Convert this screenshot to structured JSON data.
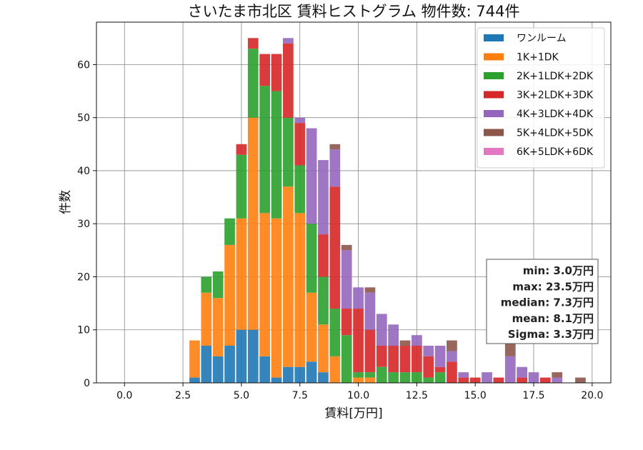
{
  "chart_data": {
    "type": "bar",
    "stacked": true,
    "title": "さいたま市北区 賃料ヒストグラム 物件数: 744件",
    "xlabel": "賃料[万円]",
    "ylabel": "件数",
    "xlim": [
      -1.2,
      20.8
    ],
    "ylim": [
      0,
      68
    ],
    "xticks": [
      "0.0",
      "2.5",
      "5.0",
      "7.5",
      "10.0",
      "12.5",
      "15.0",
      "17.5",
      "20.0"
    ],
    "yticks": [
      "0",
      "10",
      "20",
      "30",
      "40",
      "50",
      "60"
    ],
    "grid": true,
    "legend_position": "top-right",
    "bin_width": 0.5,
    "x": [
      3.0,
      3.5,
      4.0,
      4.5,
      5.0,
      5.5,
      6.0,
      6.5,
      7.0,
      7.5,
      8.0,
      8.5,
      9.0,
      9.5,
      10.0,
      10.5,
      11.0,
      11.5,
      12.0,
      12.5,
      13.0,
      13.5,
      14.0,
      14.5,
      15.0,
      15.5,
      16.0,
      16.5,
      17.0,
      17.5,
      18.0,
      18.5,
      19.0,
      19.5
    ],
    "series": [
      {
        "name": "ワンルーム",
        "color": "#1f77b4",
        "values": [
          1,
          7,
          5,
          7,
          10,
          10,
          5,
          1,
          3,
          3,
          4,
          2,
          0,
          0,
          0,
          0,
          0,
          0,
          0,
          0,
          0,
          0,
          0,
          0,
          0,
          0,
          0,
          0,
          0,
          0,
          0,
          0,
          0,
          0
        ]
      },
      {
        "name": "1K+1DK",
        "color": "#ff7f0e",
        "values": [
          7,
          10,
          11,
          19,
          21,
          40,
          27,
          30,
          34,
          29,
          13,
          9,
          5,
          0,
          1,
          1,
          0,
          0,
          0,
          0,
          0,
          0,
          0,
          0,
          0,
          0,
          0,
          0,
          0,
          0,
          0,
          0,
          0,
          0
        ]
      },
      {
        "name": "2K+1LDK+2DK",
        "color": "#2ca02c",
        "values": [
          0,
          3,
          5,
          5,
          12,
          13,
          24,
          24,
          13,
          9,
          13,
          9,
          9,
          9,
          1,
          1,
          3,
          2,
          2,
          2,
          1,
          2,
          0,
          0,
          0,
          0,
          0,
          0,
          0,
          0,
          0,
          0,
          0,
          0
        ]
      },
      {
        "name": "3K+2LDK+3DK",
        "color": "#d62728",
        "values": [
          0,
          0,
          0,
          0,
          2,
          2,
          6,
          7,
          14,
          8,
          0,
          8,
          23,
          5,
          12,
          8,
          4,
          5,
          5,
          5,
          4,
          1,
          4,
          1,
          1,
          0,
          1,
          0,
          1,
          0,
          1,
          0,
          0,
          0
        ]
      },
      {
        "name": "4K+3LDK+4DK",
        "color": "#9467bd",
        "values": [
          0,
          0,
          0,
          0,
          0,
          0,
          0,
          0,
          1,
          1,
          18,
          14,
          7,
          11,
          4,
          7,
          6,
          4,
          0,
          2,
          2,
          4,
          2,
          1,
          0,
          2,
          0,
          5,
          2,
          2,
          0,
          1,
          0,
          0
        ]
      },
      {
        "name": "5K+4LDK+5DK",
        "color": "#8c564b",
        "values": [
          0,
          0,
          0,
          0,
          0,
          0,
          0,
          0,
          0,
          0,
          0,
          0,
          1,
          1,
          0,
          1,
          0,
          0,
          1,
          0,
          0,
          0,
          2,
          0,
          0,
          0,
          0,
          3,
          0,
          0,
          0,
          1,
          0,
          1
        ]
      },
      {
        "name": "6K+5LDK+6DK",
        "color": "#e377c2",
        "values": [
          0,
          0,
          0,
          0,
          0,
          0,
          0,
          0,
          0,
          0,
          0,
          0,
          0,
          0,
          0,
          0,
          0,
          0,
          0,
          0,
          0,
          0,
          0,
          0,
          0,
          0,
          0,
          0,
          0,
          0,
          0,
          0,
          0,
          0
        ]
      }
    ],
    "stats": [
      "min: 3.0万円",
      "max: 23.5万円",
      "median: 7.3万円",
      "mean: 8.1万円",
      "Sigma: 3.3万円"
    ]
  }
}
